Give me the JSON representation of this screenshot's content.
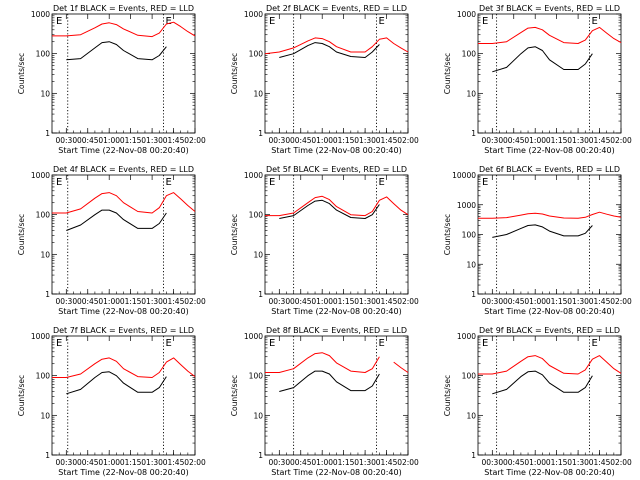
{
  "figure": {
    "xlabel": "Start Time (22-Nov-08 00:20:40)",
    "ylabel": "Counts/sec"
  },
  "chart_data": [
    {
      "type": "line",
      "title": "Det 1f BLACK = Events, RED = LLD",
      "xlabel": "Start Time (22-Nov-08 00:20:40)",
      "ylabel": "Counts/sec",
      "yscale": "log",
      "xlim": [
        "00:20",
        "02:00"
      ],
      "ylim": [
        1,
        1000
      ],
      "xticks": [
        "00:30",
        "00:45",
        "01:00",
        "01:15",
        "01:30",
        "01:45",
        "02:00"
      ],
      "yticks": [
        "1",
        "10",
        "100",
        "1000"
      ],
      "x": [
        "00:20",
        "00:30",
        "00:40",
        "00:50",
        "00:55",
        "01:00",
        "01:05",
        "01:10",
        "01:20",
        "01:30",
        "01:35",
        "01:40",
        "01:45",
        "01:50",
        "01:55",
        "02:00"
      ],
      "series": [
        {
          "name": "RED = LLD",
          "color": "#ff0000",
          "values": [
            280,
            280,
            300,
            450,
            560,
            600,
            540,
            420,
            290,
            270,
            330,
            560,
            620,
            480,
            360,
            280
          ]
        },
        {
          "name": "BLACK = Events",
          "color": "#000000",
          "values": [
            null,
            70,
            75,
            140,
            190,
            200,
            170,
            120,
            75,
            70,
            90,
            150,
            null,
            null,
            null,
            null
          ]
        }
      ],
      "vlines": [
        "00:31",
        "01:38"
      ],
      "markers": [
        "E",
        "E"
      ]
    },
    {
      "type": "line",
      "title": "Det 2f BLACK = Events, RED = LLD",
      "xlabel": "Start Time (22-Nov-08 00:20:40)",
      "ylabel": "Counts/sec",
      "yscale": "log",
      "xlim": [
        "00:20",
        "02:00"
      ],
      "ylim": [
        1,
        1000
      ],
      "xticks": [
        "00:30",
        "00:45",
        "01:00",
        "01:15",
        "01:30",
        "01:45",
        "02:00"
      ],
      "yticks": [
        "1",
        "10",
        "100",
        "1000"
      ],
      "x": [
        "00:20",
        "00:30",
        "00:40",
        "00:50",
        "00:55",
        "01:00",
        "01:05",
        "01:10",
        "01:20",
        "01:30",
        "01:35",
        "01:40",
        "01:45",
        "01:50",
        "01:55",
        "02:00"
      ],
      "series": [
        {
          "name": "RED = LLD",
          "color": "#ff0000",
          "values": [
            100,
            110,
            140,
            210,
            250,
            240,
            200,
            150,
            110,
            110,
            150,
            230,
            250,
            180,
            140,
            110
          ]
        },
        {
          "name": "BLACK = Events",
          "color": "#000000",
          "values": [
            null,
            80,
            100,
            160,
            190,
            180,
            150,
            110,
            85,
            80,
            110,
            170,
            null,
            null,
            null,
            null
          ]
        }
      ],
      "vlines": [
        "00:40",
        "01:38"
      ],
      "markers": [
        "E",
        "E"
      ]
    },
    {
      "type": "line",
      "title": "Det 3f BLACK = Events, RED = LLD",
      "xlabel": "Start Time (22-Nov-08 00:20:40)",
      "ylabel": "Counts/sec",
      "yscale": "log",
      "xlim": [
        "00:20",
        "02:00"
      ],
      "ylim": [
        1,
        1000
      ],
      "xticks": [
        "00:30",
        "00:45",
        "01:00",
        "01:15",
        "01:30",
        "01:45",
        "02:00"
      ],
      "yticks": [
        "1",
        "10",
        "100",
        "1000"
      ],
      "x": [
        "00:20",
        "00:30",
        "00:40",
        "00:50",
        "00:55",
        "01:00",
        "01:05",
        "01:10",
        "01:20",
        "01:30",
        "01:35",
        "01:40",
        "01:45",
        "01:50",
        "01:55",
        "02:00"
      ],
      "series": [
        {
          "name": "RED = LLD",
          "color": "#ff0000",
          "values": [
            180,
            180,
            200,
            340,
            440,
            460,
            400,
            290,
            190,
            180,
            220,
            380,
            460,
            330,
            240,
            190
          ]
        },
        {
          "name": "BLACK = Events",
          "color": "#000000",
          "values": [
            null,
            35,
            45,
            100,
            140,
            150,
            120,
            70,
            40,
            40,
            55,
            100,
            null,
            null,
            null,
            null
          ]
        }
      ],
      "vlines": [
        "00:33",
        "01:38"
      ],
      "markers": [
        "E",
        "E"
      ]
    },
    {
      "type": "line",
      "title": "Det 4f BLACK = Events, RED = LLD",
      "xlabel": "Start Time (22-Nov-08 00:20:40)",
      "ylabel": "Counts/sec",
      "yscale": "log",
      "xlim": [
        "00:20",
        "02:00"
      ],
      "ylim": [
        1,
        1000
      ],
      "xticks": [
        "00:30",
        "00:45",
        "01:00",
        "01:15",
        "01:30",
        "01:45",
        "02:00"
      ],
      "yticks": [
        "1",
        "10",
        "100",
        "1000"
      ],
      "x": [
        "00:20",
        "00:30",
        "00:40",
        "00:50",
        "00:55",
        "01:00",
        "01:05",
        "01:10",
        "01:20",
        "01:30",
        "01:35",
        "01:40",
        "01:45",
        "01:50",
        "01:55",
        "02:00"
      ],
      "series": [
        {
          "name": "RED = LLD",
          "color": "#ff0000",
          "values": [
            110,
            110,
            140,
            260,
            340,
            360,
            300,
            200,
            120,
            110,
            150,
            300,
            360,
            250,
            170,
            120
          ]
        },
        {
          "name": "BLACK = Events",
          "color": "#000000",
          "values": [
            null,
            40,
            55,
            100,
            130,
            130,
            110,
            75,
            45,
            45,
            60,
            110,
            null,
            null,
            null,
            null
          ]
        }
      ],
      "vlines": [
        "00:31",
        "01:38"
      ],
      "markers": [
        "E",
        "E"
      ]
    },
    {
      "type": "line",
      "title": "Det 5f BLACK = Events, RED = LLD",
      "xlabel": "Start Time (22-Nov-08 00:20:40)",
      "ylabel": "Counts/sec",
      "yscale": "log",
      "xlim": [
        "00:20",
        "02:00"
      ],
      "ylim": [
        1,
        1000
      ],
      "xticks": [
        "00:30",
        "00:45",
        "01:00",
        "01:15",
        "01:30",
        "01:45",
        "02:00"
      ],
      "yticks": [
        "1",
        "10",
        "100",
        "1000"
      ],
      "x": [
        "00:20",
        "00:30",
        "00:40",
        "00:50",
        "00:55",
        "01:00",
        "01:05",
        "01:10",
        "01:20",
        "01:30",
        "01:35",
        "01:40",
        "01:45",
        "01:50",
        "01:55",
        "02:00"
      ],
      "series": [
        {
          "name": "RED = LLD",
          "color": "#ff0000",
          "values": [
            95,
            95,
            110,
            200,
            270,
            290,
            240,
            160,
            100,
            95,
            120,
            230,
            280,
            190,
            130,
            100
          ]
        },
        {
          "name": "BLACK = Events",
          "color": "#000000",
          "values": [
            null,
            80,
            95,
            170,
            220,
            230,
            190,
            130,
            85,
            80,
            100,
            180,
            null,
            null,
            null,
            null
          ]
        }
      ],
      "vlines": [
        "00:40",
        "01:38"
      ],
      "markers": [
        "E",
        "E"
      ]
    },
    {
      "type": "line",
      "title": "Det 6f BLACK = Events, RED = LLD",
      "xlabel": "Start Time (22-Nov-08 00:20:40)",
      "ylabel": "Counts/sec",
      "yscale": "log",
      "xlim": [
        "00:20",
        "02:00"
      ],
      "ylim": [
        1,
        10000
      ],
      "xticks": [
        "00:30",
        "00:45",
        "01:00",
        "01:15",
        "01:30",
        "01:45",
        "02:00"
      ],
      "yticks": [
        "1",
        "10",
        "100",
        "1000",
        "10000"
      ],
      "x": [
        "00:20",
        "00:30",
        "00:40",
        "00:50",
        "00:55",
        "01:00",
        "01:05",
        "01:10",
        "01:20",
        "01:30",
        "01:35",
        "01:40",
        "01:45",
        "01:50",
        "01:55",
        "02:00"
      ],
      "series": [
        {
          "name": "RED = LLD",
          "color": "#ff0000",
          "values": [
            350,
            350,
            370,
            450,
            500,
            520,
            490,
            420,
            360,
            350,
            380,
            470,
            560,
            480,
            420,
            380
          ]
        },
        {
          "name": "BLACK = Events",
          "color": "#000000",
          "values": [
            null,
            80,
            100,
            160,
            200,
            210,
            180,
            130,
            90,
            90,
            110,
            200,
            null,
            null,
            null,
            null
          ]
        }
      ],
      "vlines": [
        "00:33",
        "01:38"
      ],
      "markers": [
        "E"
      ]
    },
    {
      "type": "line",
      "title": "Det 7f BLACK = Events, RED = LLD",
      "xlabel": "Start Time (22-Nov-08 00:20:40)",
      "ylabel": "Counts/sec",
      "yscale": "log",
      "xlim": [
        "00:20",
        "02:00"
      ],
      "ylim": [
        1,
        1000
      ],
      "xticks": [
        "00:30",
        "00:45",
        "01:00",
        "01:15",
        "01:30",
        "01:45",
        "02:00"
      ],
      "yticks": [
        "1",
        "10",
        "100",
        "1000"
      ],
      "x": [
        "00:20",
        "00:30",
        "00:40",
        "00:50",
        "00:55",
        "01:00",
        "01:05",
        "01:10",
        "01:20",
        "01:30",
        "01:35",
        "01:40",
        "01:45",
        "01:50",
        "01:55",
        "02:00"
      ],
      "series": [
        {
          "name": "RED = LLD",
          "color": "#ff0000",
          "values": [
            90,
            90,
            110,
            200,
            260,
            280,
            230,
            150,
            95,
            90,
            120,
            220,
            280,
            190,
            130,
            95
          ]
        },
        {
          "name": "BLACK = Events",
          "color": "#000000",
          "values": [
            null,
            35,
            45,
            90,
            120,
            125,
            100,
            65,
            38,
            38,
            50,
            95,
            null,
            null,
            null,
            null
          ]
        }
      ],
      "vlines": [
        "00:31",
        "01:38"
      ],
      "markers": [
        "E",
        "E"
      ]
    },
    {
      "type": "line",
      "title": "Det 8f BLACK = Events, RED = LLD",
      "xlabel": "Start Time (22-Nov-08 00:20:40)",
      "ylabel": "Counts/sec",
      "yscale": "log",
      "xlim": [
        "00:20",
        "02:00"
      ],
      "ylim": [
        1,
        1000
      ],
      "xticks": [
        "00:30",
        "00:45",
        "01:00",
        "01:15",
        "01:30",
        "01:45",
        "02:00"
      ],
      "yticks": [
        "1",
        "10",
        "100",
        "1000"
      ],
      "x": [
        "00:20",
        "00:30",
        "00:40",
        "00:50",
        "00:55",
        "01:00",
        "01:05",
        "01:10",
        "01:20",
        "01:30",
        "01:35",
        "01:40",
        "01:45",
        "01:50",
        "01:55",
        "02:00"
      ],
      "series": [
        {
          "name": "RED = LLD",
          "color": "#ff0000",
          "values": [
            120,
            120,
            150,
            280,
            360,
            380,
            320,
            210,
            130,
            120,
            150,
            300,
            null,
            220,
            160,
            120
          ]
        },
        {
          "name": "BLACK = Events",
          "color": "#000000",
          "values": [
            null,
            40,
            50,
            100,
            130,
            130,
            110,
            70,
            42,
            42,
            55,
            110,
            null,
            null,
            null,
            null
          ]
        }
      ],
      "vlines": [
        "00:40",
        "01:38"
      ],
      "markers": [
        "E",
        "E"
      ]
    },
    {
      "type": "line",
      "title": "Det 9f BLACK = Events, RED = LLD",
      "xlabel": "Start Time (22-Nov-08 00:20:40)",
      "ylabel": "Counts/sec",
      "yscale": "log",
      "xlim": [
        "00:20",
        "02:00"
      ],
      "ylim": [
        1,
        1000
      ],
      "xticks": [
        "00:30",
        "00:45",
        "01:00",
        "01:15",
        "01:30",
        "01:45",
        "02:00"
      ],
      "yticks": [
        "1",
        "10",
        "100",
        "1000"
      ],
      "x": [
        "00:20",
        "00:30",
        "00:40",
        "00:50",
        "00:55",
        "01:00",
        "01:05",
        "01:10",
        "01:20",
        "01:30",
        "01:35",
        "01:40",
        "01:45",
        "01:50",
        "01:55",
        "02:00"
      ],
      "series": [
        {
          "name": "RED = LLD",
          "color": "#ff0000",
          "values": [
            110,
            110,
            130,
            230,
            300,
            320,
            270,
            180,
            115,
            110,
            140,
            260,
            320,
            220,
            150,
            115
          ]
        },
        {
          "name": "BLACK = Events",
          "color": "#000000",
          "values": [
            null,
            35,
            45,
            95,
            125,
            130,
            105,
            65,
            38,
            38,
            50,
            100,
            null,
            null,
            null,
            null
          ]
        }
      ],
      "vlines": [
        "00:33",
        "01:38"
      ],
      "markers": [
        "E",
        "E"
      ]
    }
  ]
}
